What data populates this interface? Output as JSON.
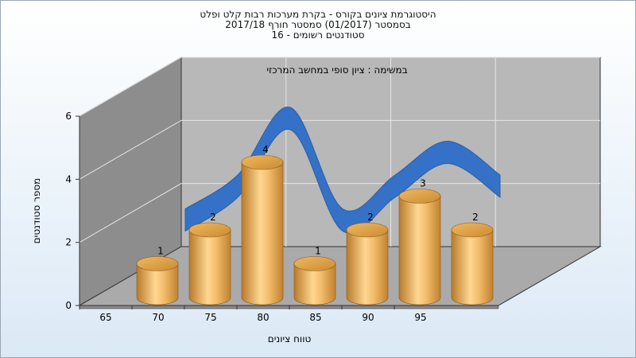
{
  "chart_data": {
    "type": "bar",
    "title_lines": [
      "היסטוגרמת ציונים בקורס - בקרת מערכות רבות קלט ופלט",
      "בסמסטר  (01/2017)  סמסטר חורף 2017/18",
      "סטודנטים רשומים - 16"
    ],
    "annotation": "במשימה : ציון סופי במחשב המרכזי",
    "categories": [
      "65",
      "70",
      "75",
      "80",
      "85",
      "90",
      "95"
    ],
    "values": [
      1,
      2,
      4,
      1,
      2,
      3,
      2
    ],
    "data_labels": [
      "1",
      "2",
      "4",
      "1",
      "2",
      "3",
      "2"
    ],
    "trend_line": true,
    "xlabel": "טווח ציונים",
    "ylabel": "מספר סטודנטים",
    "ylim": [
      0,
      6
    ],
    "y_ticks": [
      "0",
      "2",
      "4",
      "6"
    ],
    "x_ticks": [
      "65",
      "70",
      "75",
      "80",
      "85",
      "90",
      "95"
    ],
    "grid": true,
    "colors": {
      "bar_light": "#fbcf86",
      "bar_mid": "#e8a84e",
      "bar_dark": "#b97a2a",
      "bar_top": "#e3a544",
      "curve": "#3571c6",
      "wall_back": "#b7b7b7",
      "wall_side": "#8c8c8c",
      "floor": "#a9a9a9"
    }
  }
}
